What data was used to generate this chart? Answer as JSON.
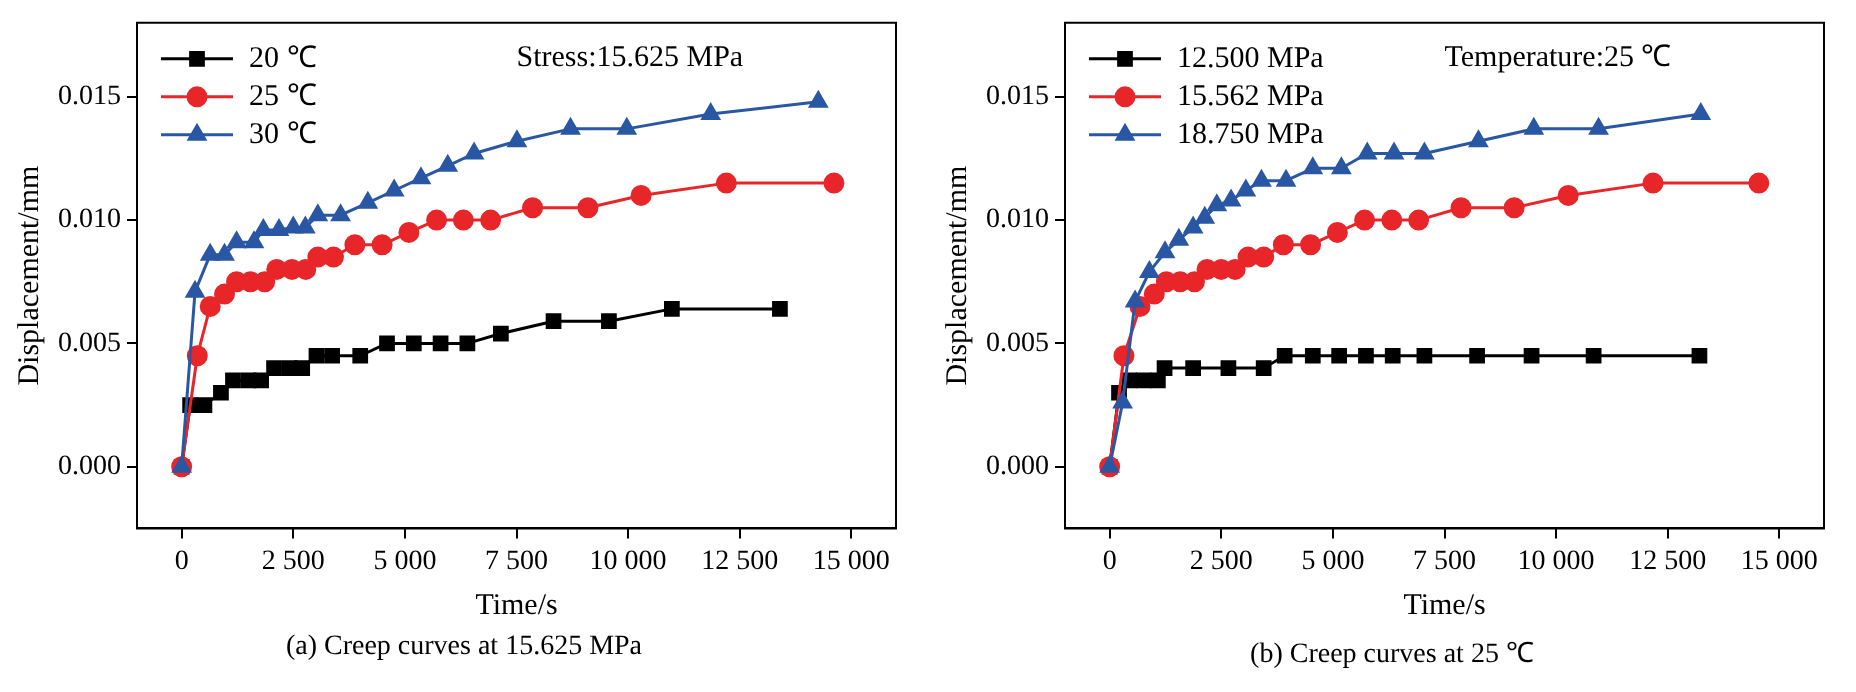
{
  "chart_data": [
    {
      "type": "line",
      "xlabel": "Time/s",
      "ylabel": "Displacement/mm",
      "annotations": [
        "Stress:15.625 MPa",
        "(a) Creep curves at 15.625 MPa"
      ],
      "xlim": [
        -1000,
        16000
      ],
      "xticks": [
        0,
        {
          "value": 2500,
          "label": "2 500"
        },
        {
          "value": 5000,
          "label": "5 000"
        },
        {
          "value": 7500,
          "label": "7 500"
        },
        {
          "value": 10000,
          "label": "10 000"
        },
        {
          "value": 12500,
          "label": "12 500"
        },
        {
          "value": 15000,
          "label": "15 000"
        }
      ],
      "ylim": [
        -0.0025,
        0.018
      ],
      "yticks": [
        {
          "value": 0,
          "label": "0.000"
        },
        {
          "value": 0.005,
          "label": "0.005"
        },
        {
          "value": 0.01,
          "label": "0.010"
        },
        {
          "value": 0.015,
          "label": "0.015"
        }
      ],
      "grid": false,
      "legend": "top left",
      "line_style": "solid",
      "series": [
        {
          "name": "20 ℃",
          "color": "#000000",
          "marker": "square",
          "x": [
            0,
            190,
            510,
            880,
            1150,
            1500,
            1780,
            2070,
            2420,
            2700,
            3020,
            3370,
            4000,
            4600,
            5200,
            5800,
            6400,
            7150,
            8330,
            9570,
            10980,
            13400
          ],
          "values": [
            0,
            0.0025,
            0.0025,
            0.003,
            0.0035,
            0.0035,
            0.0035,
            0.004,
            0.004,
            0.004,
            0.0045,
            0.0045,
            0.0045,
            0.005,
            0.005,
            0.005,
            0.005,
            0.0054,
            0.0059,
            0.0059,
            0.0064,
            0.0064
          ]
        },
        {
          "name": "25 ℃",
          "color": "#e8262a",
          "marker": "circle",
          "x": [
            0,
            350,
            640,
            960,
            1230,
            1540,
            1860,
            2130,
            2470,
            2780,
            3050,
            3400,
            3880,
            4490,
            5090,
            5710,
            6310,
            6920,
            7860,
            9100,
            10290,
            12200,
            14610
          ],
          "values": [
            0,
            0.0045,
            0.0065,
            0.007,
            0.0075,
            0.0075,
            0.0075,
            0.008,
            0.008,
            0.008,
            0.0085,
            0.0085,
            0.009,
            0.009,
            0.0095,
            0.01,
            0.01,
            0.01,
            0.0105,
            0.0105,
            0.011,
            0.0115,
            0.0115
          ]
        },
        {
          "name": "30 ℃",
          "color": "#2957a4",
          "marker": "triangle",
          "x": [
            0,
            300,
            640,
            960,
            1230,
            1620,
            1830,
            2180,
            2500,
            2770,
            3050,
            3560,
            4170,
            4760,
            5360,
            5960,
            6550,
            7510,
            8710,
            9970,
            11850,
            14260
          ],
          "values": [
            0,
            0.0071,
            0.0086,
            0.0086,
            0.0091,
            0.0091,
            0.0096,
            0.0096,
            0.0097,
            0.0097,
            0.0102,
            0.0102,
            0.0107,
            0.0112,
            0.0117,
            0.0122,
            0.0127,
            0.0132,
            0.0137,
            0.0137,
            0.0143,
            0.0148
          ]
        }
      ]
    },
    {
      "type": "line",
      "xlabel": "Time/s",
      "ylabel": "Displacement/mm",
      "annotations": [
        "Temperature:25 ℃",
        "(b) Creep curves at 25 ℃"
      ],
      "xlim": [
        -1000,
        16000
      ],
      "xticks": [
        0,
        {
          "value": 2500,
          "label": "2 500"
        },
        {
          "value": 5000,
          "label": "5 000"
        },
        {
          "value": 7500,
          "label": "7 500"
        },
        {
          "value": 10000,
          "label": "10 000"
        },
        {
          "value": 12500,
          "label": "12 500"
        },
        {
          "value": 15000,
          "label": "15 000"
        }
      ],
      "ylim": [
        -0.0025,
        0.018
      ],
      "yticks": [
        {
          "value": 0,
          "label": "0.000"
        },
        {
          "value": 0.005,
          "label": "0.005"
        },
        {
          "value": 0.01,
          "label": "0.010"
        },
        {
          "value": 0.015,
          "label": "0.015"
        }
      ],
      "grid": false,
      "legend": "top left",
      "line_style": "solid",
      "series": [
        {
          "name": "12.500 MPa",
          "color": "#000000",
          "marker": "square",
          "x": [
            0,
            210,
            440,
            760,
            1080,
            1230,
            1870,
            2660,
            3450,
            3920,
            4550,
            5140,
            5740,
            6340,
            7050,
            8230,
            9450,
            10840,
            13210
          ],
          "values": [
            0,
            0.003,
            0.0035,
            0.0035,
            0.0035,
            0.004,
            0.004,
            0.004,
            0.004,
            0.0045,
            0.0045,
            0.0045,
            0.0045,
            0.0045,
            0.0045,
            0.0045,
            0.0045,
            0.0045,
            0.0045
          ]
        },
        {
          "name": "15.562 MPa",
          "color": "#e8262a",
          "marker": "circle",
          "x": [
            0,
            320,
            680,
            1000,
            1270,
            1580,
            1900,
            2180,
            2500,
            2810,
            3100,
            3450,
            3890,
            4500,
            5100,
            5710,
            6320,
            6920,
            7870,
            9060,
            10270,
            12170,
            14540
          ],
          "values": [
            0,
            0.0045,
            0.0065,
            0.007,
            0.0075,
            0.0075,
            0.0075,
            0.008,
            0.008,
            0.008,
            0.0085,
            0.0085,
            0.009,
            0.009,
            0.0095,
            0.01,
            0.01,
            0.01,
            0.0105,
            0.0105,
            0.011,
            0.0115,
            0.0115
          ]
        },
        {
          "name": "18.750 MPa",
          "color": "#2957a4",
          "marker": "triangle",
          "x": [
            0,
            290,
            570,
            890,
            1240,
            1550,
            1870,
            2130,
            2400,
            2720,
            3050,
            3400,
            3950,
            4550,
            5190,
            5770,
            6370,
            7050,
            8260,
            9500,
            10950,
            13240
          ],
          "values": [
            0,
            0.0026,
            0.0067,
            0.0079,
            0.0087,
            0.0092,
            0.0097,
            0.0101,
            0.0106,
            0.0108,
            0.0112,
            0.0116,
            0.0116,
            0.0121,
            0.0121,
            0.0127,
            0.0127,
            0.0127,
            0.0132,
            0.0137,
            0.0137,
            0.0143
          ]
        }
      ]
    }
  ]
}
